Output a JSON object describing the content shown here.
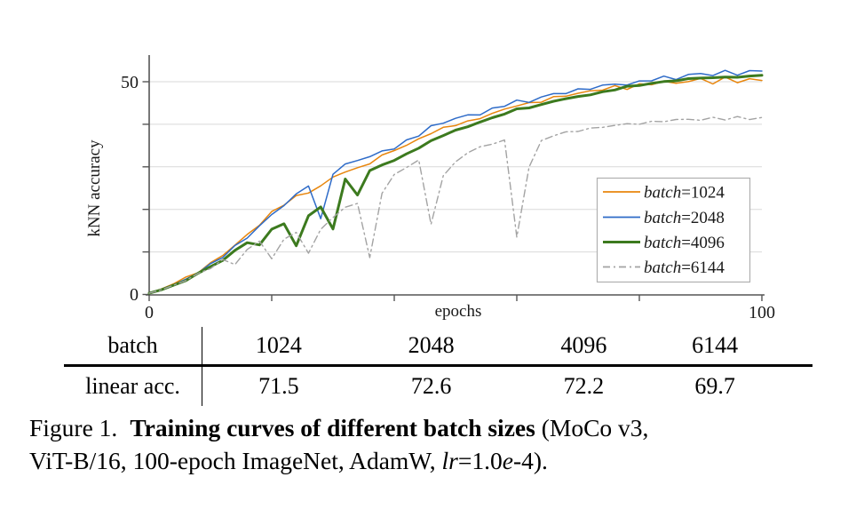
{
  "chart_data": {
    "type": "line",
    "title": "",
    "xlabel": "epochs",
    "ylabel": "kNN accuracy",
    "xlim": [
      0,
      100
    ],
    "ylim": [
      0,
      55
    ],
    "xticks": [
      0,
      20,
      40,
      60,
      80,
      100
    ],
    "yticks": [
      0,
      10,
      20,
      30,
      40,
      50
    ],
    "xtick_labels": [
      "0",
      "100"
    ],
    "ytick_labels": [
      "0",
      "50"
    ],
    "grid": "horizontal",
    "legend_position": "lower right",
    "x": [
      0,
      2,
      4,
      6,
      8,
      10,
      12,
      14,
      16,
      18,
      20,
      22,
      24,
      26,
      28,
      30,
      32,
      34,
      36,
      38,
      40,
      42,
      44,
      46,
      48,
      50,
      52,
      54,
      56,
      58,
      60,
      62,
      64,
      66,
      68,
      70,
      72,
      74,
      76,
      78,
      80,
      82,
      84,
      86,
      88,
      90,
      92,
      94,
      96,
      98,
      100
    ],
    "series": [
      {
        "name": "batch=1024",
        "color": "#e8860d",
        "style": "solid",
        "width": 1.5,
        "values": [
          0.3,
          1.3,
          2.5,
          3.8,
          5.4,
          7.2,
          9.3,
          11.6,
          14,
          16.5,
          19.2,
          21.3,
          23,
          24,
          25.5,
          27.5,
          29,
          29.5,
          31,
          32.5,
          34,
          35,
          36.5,
          38,
          39,
          40,
          40.5,
          41.5,
          42.5,
          43.5,
          44.5,
          44.8,
          45.5,
          46.2,
          46.8,
          47.2,
          47.8,
          48.2,
          48.8,
          48.5,
          49.2,
          49.5,
          50,
          49.6,
          50.2,
          50.5,
          49.8,
          50.8,
          50,
          50.6,
          50.3
        ]
      },
      {
        "name": "batch=2048",
        "color": "#2e6bc8",
        "style": "solid",
        "width": 1.5,
        "values": [
          0.3,
          1.2,
          2.3,
          3.6,
          5.2,
          7,
          9,
          11.2,
          13.5,
          16,
          18.8,
          21,
          23.4,
          25.8,
          17.5,
          28.5,
          30.5,
          31.5,
          32.5,
          33.5,
          34.5,
          36,
          37.5,
          39.5,
          40.3,
          41.5,
          42,
          42.5,
          43.5,
          44.5,
          45.5,
          45.2,
          46.5,
          47,
          47.5,
          48,
          48.5,
          49,
          49.5,
          49.3,
          50,
          50.5,
          51,
          50.8,
          51.5,
          52,
          51.5,
          52.5,
          51.8,
          52.3,
          52.5
        ]
      },
      {
        "name": "batch=4096",
        "color": "#3c7a1e",
        "style": "solid",
        "width": 3,
        "values": [
          0.3,
          1.1,
          2.2,
          3.4,
          4.9,
          6.6,
          8,
          10.3,
          12.3,
          11.5,
          15.5,
          16.5,
          11.5,
          18.5,
          20.5,
          15.5,
          27,
          23.5,
          29,
          30.5,
          31.5,
          33,
          34.5,
          36,
          37.5,
          38.5,
          39.5,
          40.5,
          41.5,
          42.5,
          43.5,
          44,
          44.5,
          45.5,
          46,
          46.5,
          47,
          47.5,
          48.2,
          48.8,
          49.2,
          49.6,
          50,
          50.3,
          50.6,
          51,
          50.8,
          51.2,
          51,
          51.3,
          51.5
        ]
      },
      {
        "name": "batch=6144",
        "color": "#a3a3a3",
        "style": "dashdot",
        "width": 1.4,
        "values": [
          0.3,
          1.1,
          2.2,
          3.4,
          4.8,
          6.3,
          8,
          7.2,
          10.5,
          12.5,
          8.5,
          12.8,
          14.8,
          9.5,
          15.5,
          18,
          20.5,
          21.5,
          8.5,
          24,
          28,
          30,
          31.5,
          16.5,
          28,
          31,
          33.5,
          34.5,
          35.5,
          36.2,
          13.5,
          30,
          36,
          37.5,
          38,
          38.5,
          39,
          39.3,
          39.8,
          40,
          40.2,
          40.5,
          40.8,
          41,
          41.2,
          41,
          41.5,
          41.2,
          41.6,
          41.3,
          41.6
        ]
      }
    ]
  },
  "table": {
    "rows": [
      {
        "label": "batch",
        "values": [
          "1024",
          "2048",
          "4096",
          "6144"
        ]
      },
      {
        "label": "linear acc.",
        "values": [
          "71.5",
          "72.6",
          "72.2",
          "69.7"
        ]
      }
    ]
  },
  "figure": {
    "caption": {
      "label": "Figure 1.",
      "bold": "Training curves of different batch sizes",
      "after_bold": " (MoCo v3,",
      "line2_pre": "ViT-B/16, 100-epoch ImageNet, AdamW, ",
      "lr_italic": "lr",
      "mid": "=1.0",
      "e_italic": "e",
      "tail": "-4)."
    }
  },
  "colors": {
    "axis": "#555555",
    "grid": "#d9d9d9",
    "text": "#1a1a1a",
    "legend_border": "#b0b0b0",
    "rule": "#000000"
  }
}
